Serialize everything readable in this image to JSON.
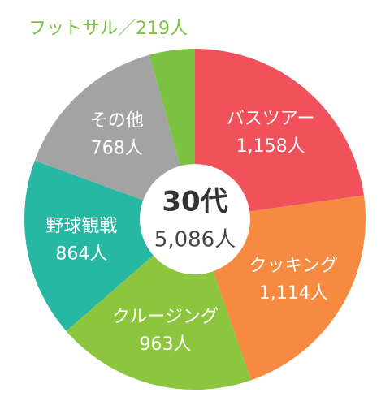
{
  "chart_data": {
    "type": "donut",
    "center_title": "30代",
    "total": {
      "value": 5086,
      "label": "5,086人"
    },
    "categories": [
      "バスツアー",
      "クッキング",
      "クルージング",
      "野球観戦",
      "その他",
      "フットサル"
    ],
    "values": [
      1158,
      1114,
      963,
      864,
      768,
      219
    ],
    "value_labels": [
      "1,158人",
      "1,114人",
      "963人",
      "864人",
      "768人",
      "／219人"
    ],
    "colors": [
      "#f0515b",
      "#f58a40",
      "#8cc63f",
      "#27b8a4",
      "#a3a3a3",
      "#7cc242"
    ]
  }
}
